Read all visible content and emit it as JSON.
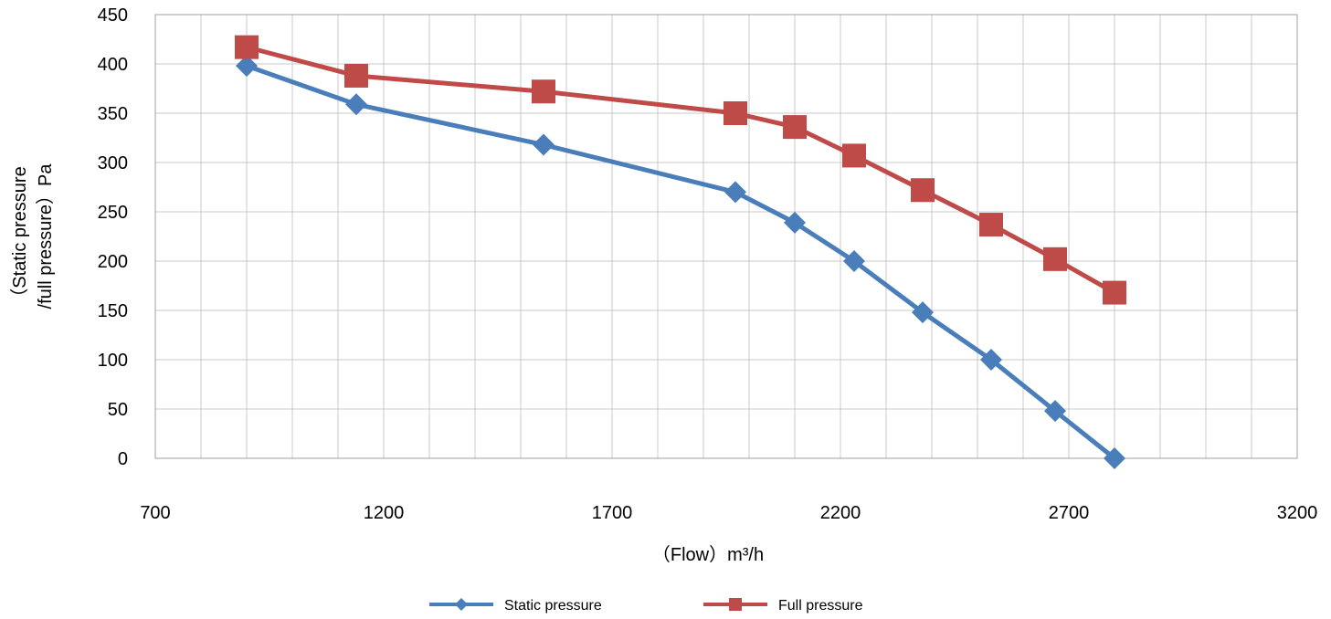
{
  "chart_data": {
    "type": "line",
    "title": "",
    "xlabel": "（Flow）m³/h",
    "ylabel_line1": "（Static pressure",
    "ylabel_line2": "/full pressure）Pa",
    "xlim": [
      700,
      3200
    ],
    "ylim": [
      0,
      450
    ],
    "x_ticks": [
      700,
      1200,
      1700,
      2200,
      2700,
      3200
    ],
    "y_ticks": [
      0,
      50,
      100,
      150,
      200,
      250,
      300,
      350,
      400,
      450
    ],
    "x_grid_step": 100,
    "grid": true,
    "legend_position": "bottom",
    "series": [
      {
        "name": "Static pressure",
        "color": "#4a7ebb",
        "marker": "diamond",
        "x": [
          900,
          1140,
          1550,
          1970,
          2100,
          2230,
          2380,
          2530,
          2670,
          2800
        ],
        "y": [
          398,
          359,
          318,
          270,
          239,
          200,
          148,
          100,
          48,
          0
        ]
      },
      {
        "name": "Full pressure",
        "color": "#be4b48",
        "marker": "square",
        "x": [
          900,
          1140,
          1550,
          1970,
          2100,
          2230,
          2380,
          2530,
          2670,
          2800
        ],
        "y": [
          417,
          388,
          372,
          350,
          336,
          307,
          272,
          237,
          202,
          168
        ]
      }
    ]
  }
}
